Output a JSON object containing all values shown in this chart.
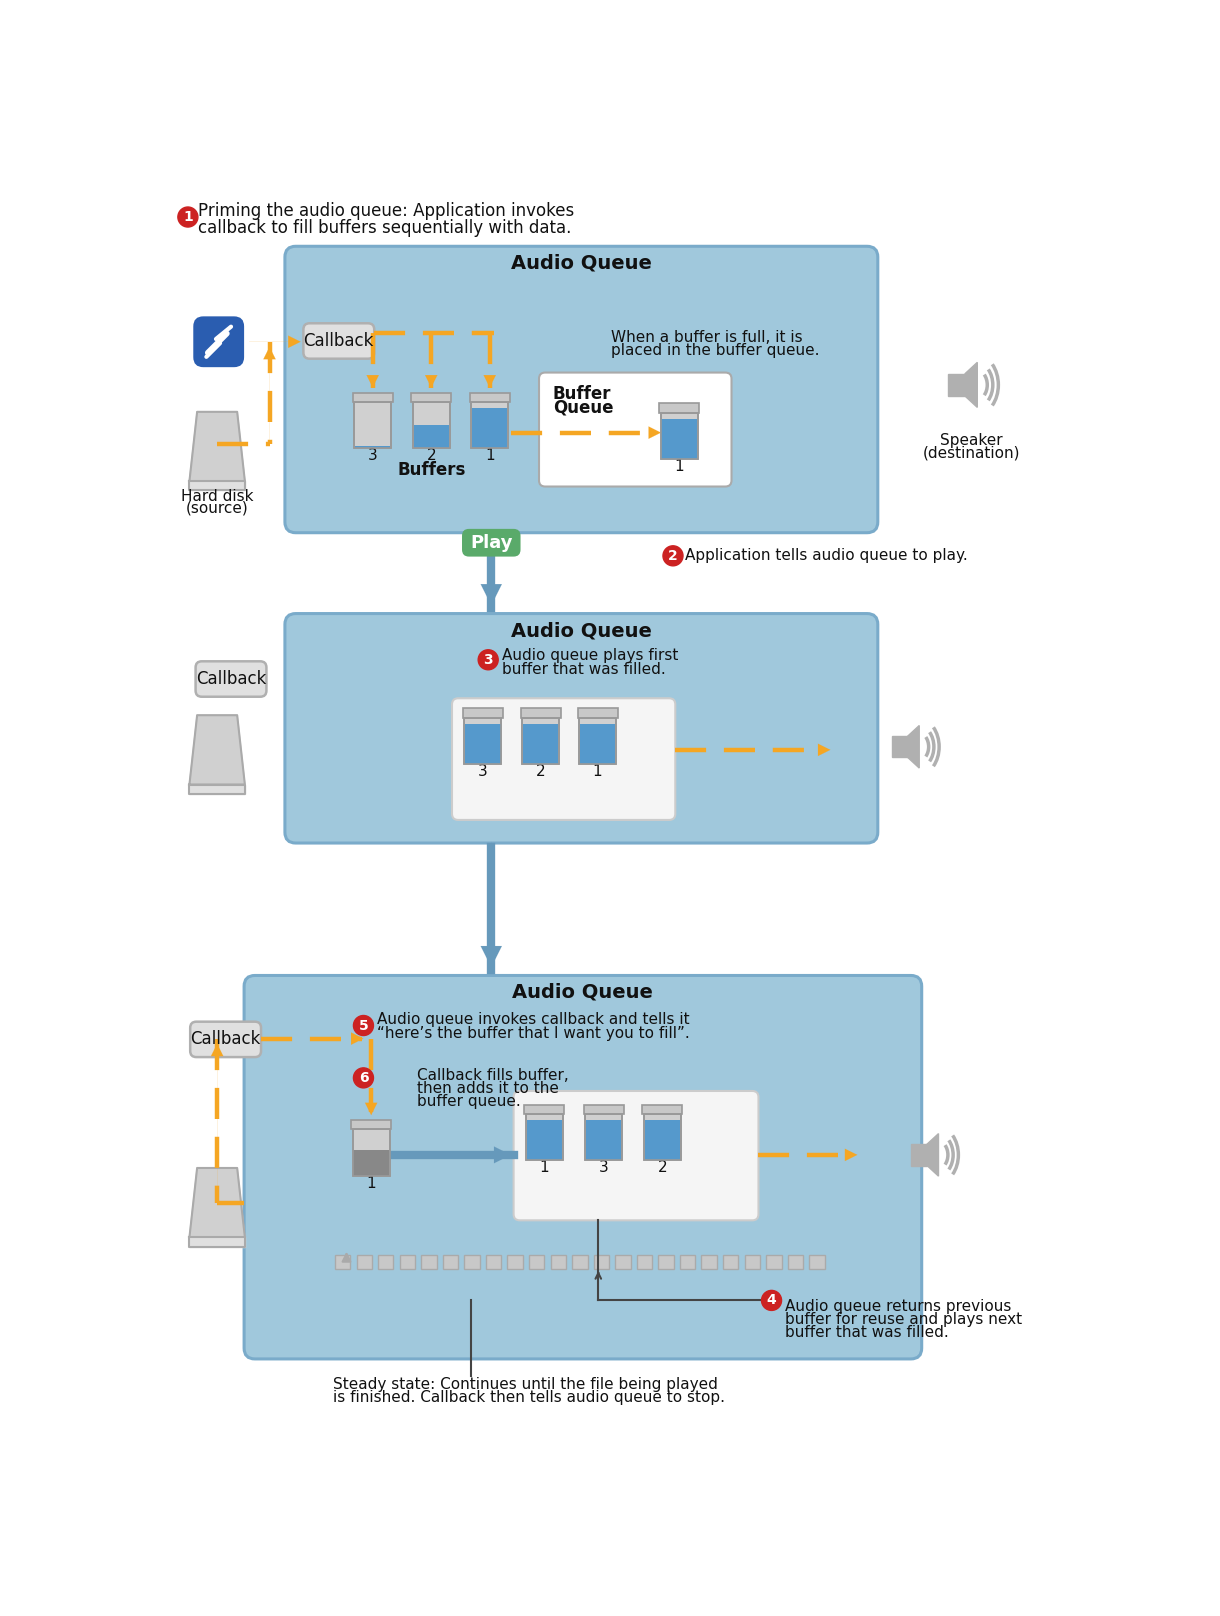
{
  "bg": "#ffffff",
  "aq_bg": "#a0c8dc",
  "aq_border": "#7aabca",
  "cb_bg": "#e0e0e0",
  "cb_border": "#b0b0b0",
  "buf_blue": "#5599cc",
  "buf_body": "#d0d0d0",
  "buf_cap": "#c8c8c8",
  "buf_border": "#999999",
  "bq_bg": "#ffffff",
  "bq_border": "#aaaaaa",
  "orange": "#f5a623",
  "blue_arr": "#6699bb",
  "green": "#5aaa6a",
  "red": "#cc2222",
  "gray_disk": "#c8c8c8",
  "gray_spk": "#aaaaaa",
  "app_blue": "#2a5db0",
  "white": "#ffffff",
  "black": "#111111",
  "gray_sq": "#c8c8c8",
  "gray_sq_border": "#aaaaaa",
  "s1_lbl": "Audio Queue",
  "s2_lbl": "Audio Queue",
  "s3_lbl": "Audio Queue",
  "cb_lbl": "Callback",
  "play_lbl": "Play",
  "buffers_lbl": "Buffers",
  "bq_lbl1": "Buffer",
  "bq_lbl2": "Queue",
  "hd_lbl1": "Hard disk",
  "hd_lbl2": "(source)",
  "spk_lbl1": "Speaker",
  "spk_lbl2": "(destination)",
  "t1a": "Priming the audio queue: Application invokes",
  "t1b": "callback to fill buffers sequentially with data.",
  "t2": "Application tells audio queue to play.",
  "t3a": "Audio queue plays first",
  "t3b": "buffer that was filled.",
  "t4a": "Audio queue returns previous",
  "t4b": "buffer for reuse and plays next",
  "t4c": "buffer that was filled.",
  "t5a": "Audio queue invokes callback and tells it",
  "t5b": "“here’s the buffer that I want you to fill”.",
  "t6a": "Callback fills buffer,",
  "t6b": "then adds it to the",
  "t6c": "buffer queue.",
  "twfa": "When a buffer is full, it is",
  "twfb": "placed in the buffer queue.",
  "tss1": "Steady state: Continues until the file being played",
  "tss2": "is finished. Callback then tells audio queue to stop."
}
